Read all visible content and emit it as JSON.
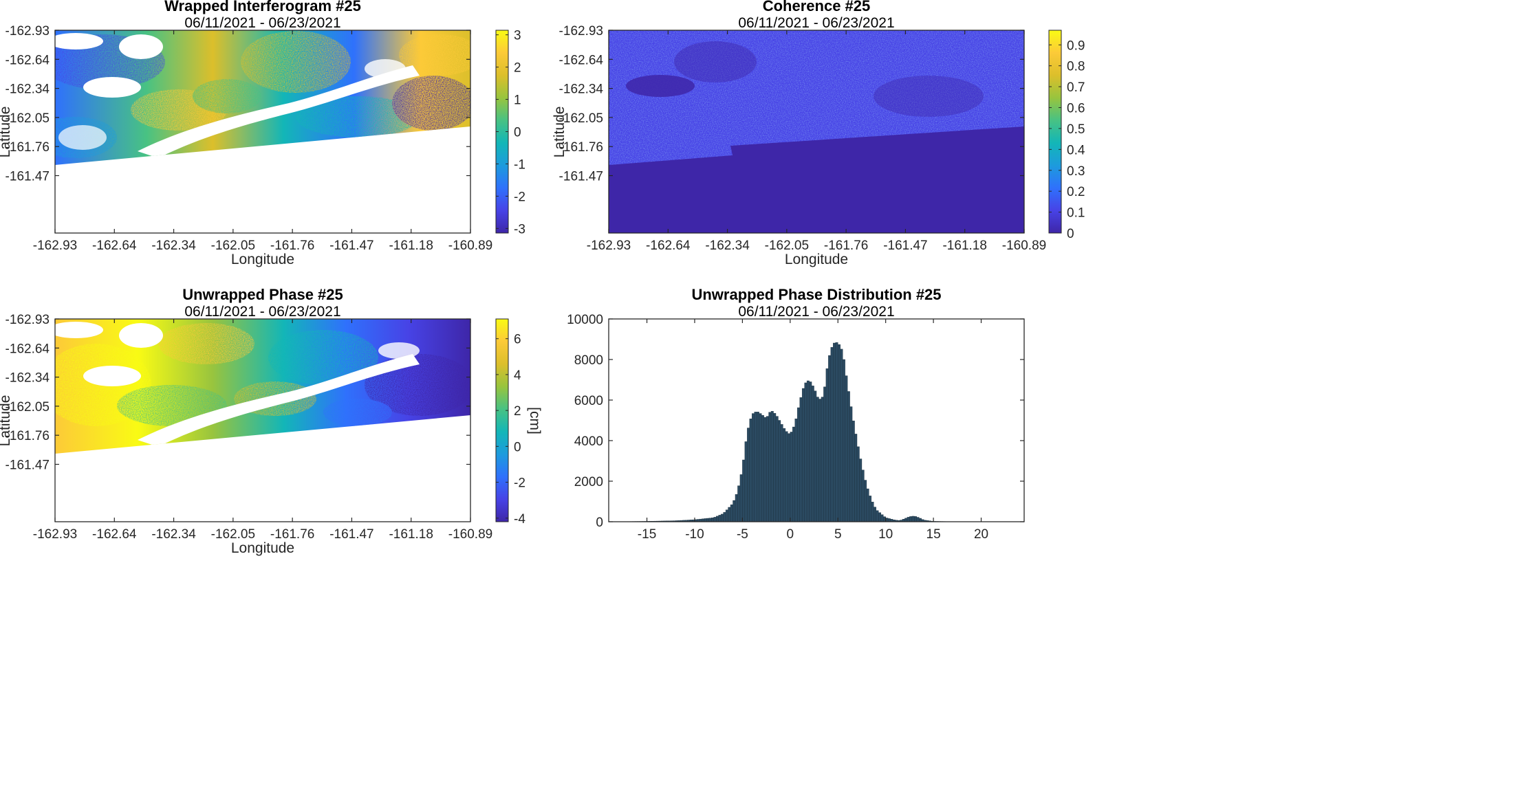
{
  "map_panels": [
    {
      "id": "wrapped",
      "title": "Wrapped Interferogram #25",
      "subtitle": "06/11/2021 - 06/23/2021",
      "ylabel": "Latitude",
      "xlabel": "Longitude",
      "lat_ticks": [
        "-162.93",
        "-162.64",
        "-162.34",
        "-162.05",
        "-161.76",
        "-161.47"
      ],
      "lon_ticks": [
        "-162.93",
        "-162.64",
        "-162.34",
        "-162.05",
        "-161.76",
        "-161.47",
        "-161.18",
        "-160.89"
      ],
      "colorbar": {
        "ticks": [
          "3",
          "2",
          "1",
          "0",
          "-1",
          "-2",
          "-3"
        ],
        "label": ""
      }
    },
    {
      "id": "coherence",
      "title": "Coherence #25",
      "subtitle": "06/11/2021 - 06/23/2021",
      "ylabel": "Latitude",
      "xlabel": "Longitude",
      "lat_ticks": [
        "-162.93",
        "-162.64",
        "-162.34",
        "-162.05",
        "-161.76",
        "-161.47"
      ],
      "lon_ticks": [
        "-162.93",
        "-162.64",
        "-162.34",
        "-162.05",
        "-161.76",
        "-161.47",
        "-161.18",
        "-160.89"
      ],
      "colorbar": {
        "ticks": [
          "0.9",
          "0.8",
          "0.7",
          "0.6",
          "0.5",
          "0.4",
          "0.3",
          "0.2",
          "0.1",
          "0"
        ],
        "label": ""
      }
    },
    {
      "id": "unwrapped",
      "title": "Unwrapped Phase #25",
      "subtitle": "06/11/2021 - 06/23/2021",
      "ylabel": "Latitude",
      "xlabel": "Longitude",
      "lat_ticks": [
        "-162.93",
        "-162.64",
        "-162.34",
        "-162.05",
        "-161.76",
        "-161.47"
      ],
      "lon_ticks": [
        "-162.93",
        "-162.64",
        "-162.34",
        "-162.05",
        "-161.76",
        "-161.47",
        "-161.18",
        "-160.89"
      ],
      "colorbar": {
        "ticks": [
          "6",
          "4",
          "2",
          "0",
          "-2",
          "-4"
        ],
        "label": "[cm]"
      }
    }
  ],
  "colors": {
    "parula": [
      "#3e26a8",
      "#4743e6",
      "#2f71fc",
      "#1d9bdd",
      "#13b6b7",
      "#48c283",
      "#98c43e",
      "#dcbf2b",
      "#fcca38",
      "#f9fb14"
    ],
    "histogram_fill": "#2b4a61",
    "histogram_edge": "#1a2e3c"
  },
  "chart_data": {
    "type": "bar",
    "title": "Unwrapped Phase Distribution #25",
    "subtitle": "06/11/2021 - 06/23/2021",
    "xlabel": "",
    "ylabel": "",
    "xlim": [
      -19,
      24.5
    ],
    "ylim": [
      0,
      10000
    ],
    "x_ticks": [
      -15,
      -10,
      -5,
      0,
      5,
      10,
      15,
      20
    ],
    "y_ticks": [
      0,
      2000,
      4000,
      6000,
      8000,
      10000
    ],
    "grid": false,
    "bin_width": 0.25,
    "profile_x": [
      -19,
      -15,
      -12,
      -10,
      -8,
      -7,
      -6,
      -5.5,
      -5,
      -4.5,
      -4,
      -3.5,
      -3,
      -2.5,
      -2,
      -1.5,
      -1,
      -0.5,
      0,
      0.5,
      1,
      1.5,
      2,
      2.5,
      3,
      3.5,
      4,
      4.5,
      5,
      5.5,
      6,
      6.5,
      7,
      7.5,
      8,
      8.5,
      9,
      10,
      11,
      11.5,
      12,
      12.5,
      13,
      13.5,
      14,
      15,
      17,
      20,
      22.5
    ],
    "profile_y": [
      0,
      20,
      50,
      100,
      200,
      400,
      900,
      1500,
      2600,
      4400,
      5300,
      5450,
      5300,
      5100,
      5500,
      5300,
      4900,
      4500,
      4300,
      4800,
      5900,
      6800,
      7000,
      6600,
      6000,
      6200,
      8000,
      8800,
      8850,
      8400,
      6800,
      5300,
      4000,
      2800,
      1800,
      1100,
      600,
      200,
      80,
      60,
      150,
      250,
      280,
      200,
      80,
      20,
      5,
      0,
      0
    ]
  }
}
